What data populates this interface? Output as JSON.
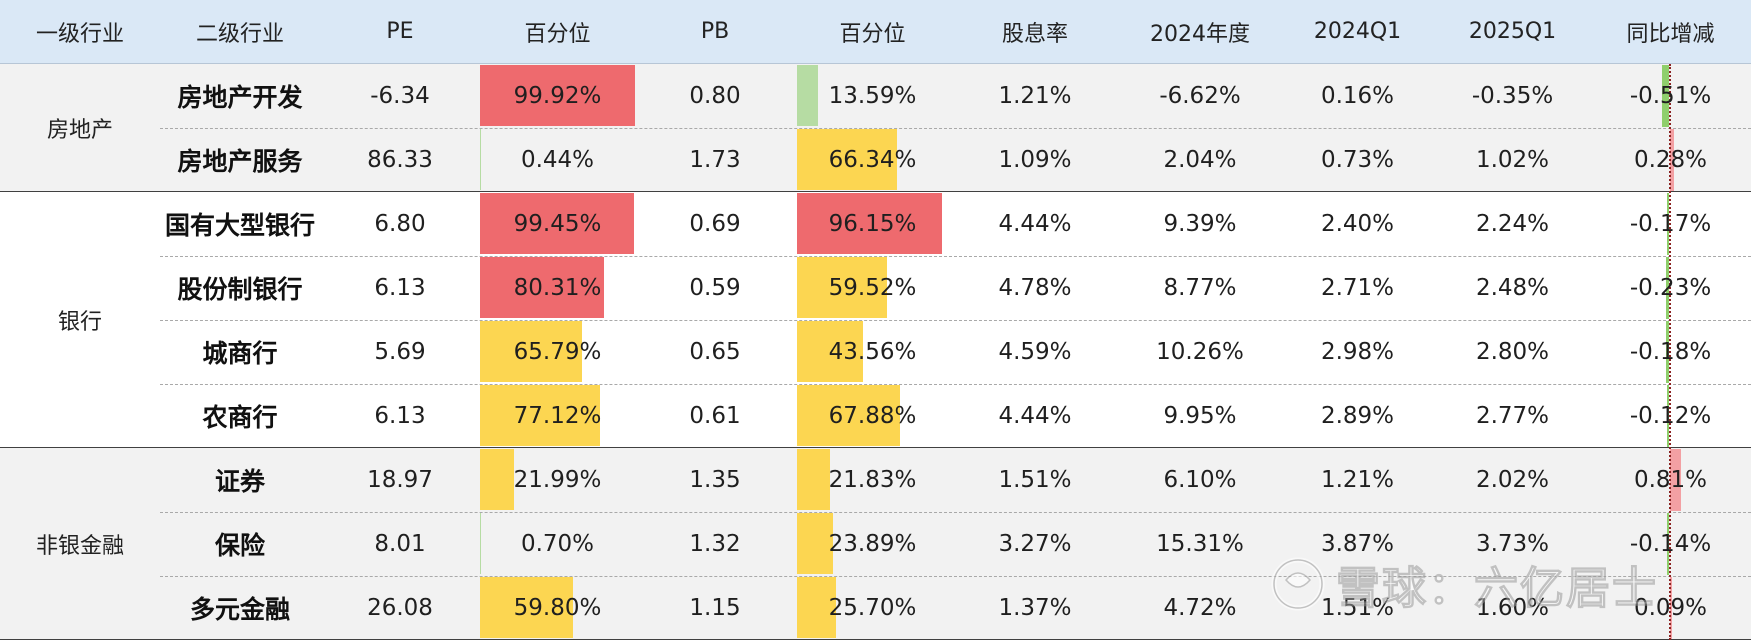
{
  "headers": [
    "一级行业",
    "二级行业",
    "PE",
    "百分位",
    "PB",
    "百分位",
    "股息率",
    "2024年度",
    "2024Q1",
    "2025Q1",
    "同比增减"
  ],
  "groups": [
    {
      "name": "房地产",
      "rows": 2
    },
    {
      "name": "银行",
      "rows": 4
    },
    {
      "name": "非银金融",
      "rows": 3
    }
  ],
  "rows": [
    {
      "l2": "房地产开发",
      "pe": "-6.34",
      "pe_pct": "99.92%",
      "pb": "0.80",
      "pb_pct": "13.59%",
      "dy": "1.21%",
      "y2024": "-6.62%",
      "q2024": "0.16%",
      "q2025": "-0.35%",
      "yoy": "-0.51%"
    },
    {
      "l2": "房地产服务",
      "pe": "86.33",
      "pe_pct": "0.44%",
      "pb": "1.73",
      "pb_pct": "66.34%",
      "dy": "1.09%",
      "y2024": "2.04%",
      "q2024": "0.73%",
      "q2025": "1.02%",
      "yoy": "0.28%"
    },
    {
      "l2": "国有大型银行",
      "pe": "6.80",
      "pe_pct": "99.45%",
      "pb": "0.69",
      "pb_pct": "96.15%",
      "dy": "4.44%",
      "y2024": "9.39%",
      "q2024": "2.40%",
      "q2025": "2.24%",
      "yoy": "-0.17%"
    },
    {
      "l2": "股份制银行",
      "pe": "6.13",
      "pe_pct": "80.31%",
      "pb": "0.59",
      "pb_pct": "59.52%",
      "dy": "4.78%",
      "y2024": "8.77%",
      "q2024": "2.71%",
      "q2025": "2.48%",
      "yoy": "-0.23%"
    },
    {
      "l2": "城商行",
      "pe": "5.69",
      "pe_pct": "65.79%",
      "pb": "0.65",
      "pb_pct": "43.56%",
      "dy": "4.59%",
      "y2024": "10.26%",
      "q2024": "2.98%",
      "q2025": "2.80%",
      "yoy": "-0.18%"
    },
    {
      "l2": "农商行",
      "pe": "6.13",
      "pe_pct": "77.12%",
      "pb": "0.61",
      "pb_pct": "67.88%",
      "dy": "4.44%",
      "y2024": "9.95%",
      "q2024": "2.89%",
      "q2025": "2.77%",
      "yoy": "-0.12%"
    },
    {
      "l2": "证券",
      "pe": "18.97",
      "pe_pct": "21.99%",
      "pb": "1.35",
      "pb_pct": "21.83%",
      "dy": "1.51%",
      "y2024": "6.10%",
      "q2024": "1.21%",
      "q2025": "2.02%",
      "yoy": "0.81%"
    },
    {
      "l2": "保险",
      "pe": "8.01",
      "pe_pct": "0.70%",
      "pb": "1.32",
      "pb_pct": "23.89%",
      "dy": "3.27%",
      "y2024": "15.31%",
      "q2024": "3.87%",
      "q2025": "3.73%",
      "yoy": "-0.14%"
    },
    {
      "l2": "多元金融",
      "pe": "26.08",
      "pe_pct": "59.80%",
      "pb": "1.15",
      "pb_pct": "25.70%",
      "dy": "1.37%",
      "y2024": "4.72%",
      "q2024": "1.51%",
      "q2025": "1.60%",
      "yoy": "0.09%"
    }
  ],
  "pe_pct_bars": [
    {
      "fraction": 0.999,
      "color": "#ee6a6e"
    },
    {
      "fraction": 0.0,
      "color": "#b6dca3"
    },
    {
      "fraction": 0.995,
      "color": "#ee6a6e"
    },
    {
      "fraction": 0.803,
      "color": "#ee6a6e"
    },
    {
      "fraction": 0.658,
      "color": "#fcd651"
    },
    {
      "fraction": 0.771,
      "color": "#fcd651"
    },
    {
      "fraction": 0.22,
      "color": "#fcd651"
    },
    {
      "fraction": 0.0,
      "color": "#b6dca3"
    },
    {
      "fraction": 0.598,
      "color": "#fcd651"
    }
  ],
  "pb_pct_bars": [
    {
      "fraction": 0.136,
      "color": "#b6dca3"
    },
    {
      "fraction": 0.663,
      "color": "#fcd651"
    },
    {
      "fraction": 0.962,
      "color": "#ee6a6e"
    },
    {
      "fraction": 0.595,
      "color": "#fcd651"
    },
    {
      "fraction": 0.436,
      "color": "#fcd651"
    },
    {
      "fraction": 0.679,
      "color": "#fcd651"
    },
    {
      "fraction": 0.218,
      "color": "#fcd651"
    },
    {
      "fraction": 0.239,
      "color": "#fcd651"
    },
    {
      "fraction": 0.257,
      "color": "#fcd651"
    }
  ],
  "yoy_bars": [
    {
      "value": -0.51,
      "color": "#8fcf6c"
    },
    {
      "value": 0.28,
      "color": "#f3a0a3"
    },
    {
      "value": -0.17,
      "color": "#8fcf6c"
    },
    {
      "value": -0.23,
      "color": "#8fcf6c"
    },
    {
      "value": -0.18,
      "color": "#8fcf6c"
    },
    {
      "value": -0.12,
      "color": "#8fcf6c"
    },
    {
      "value": 0.81,
      "color": "#f3a0a3"
    },
    {
      "value": -0.14,
      "color": "#8fcf6c"
    },
    {
      "value": 0.09,
      "color": "#f3a0a3"
    }
  ],
  "watermark": "雪球：六亿居士"
}
